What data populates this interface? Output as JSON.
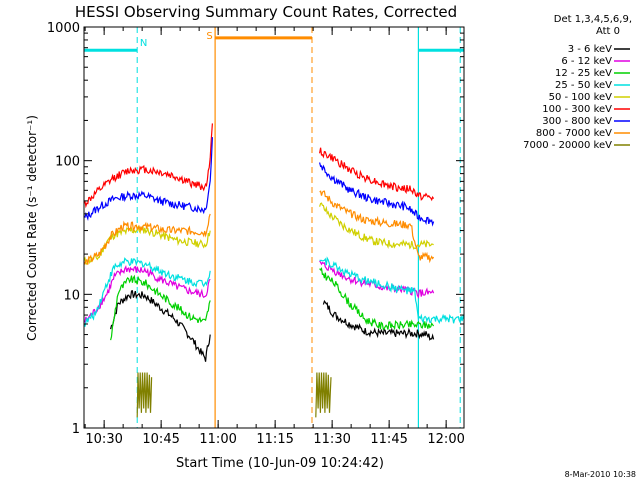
{
  "chart_data": {
    "type": "line",
    "title": "HESSI Observing Summary Count Rates, Corrected",
    "xlabel": "Start Time (10-Jun-09 10:24:42)",
    "ylabel": "Corrected Count Rate (s⁻¹ detector⁻¹)",
    "y_scale": "log",
    "ylim": [
      1,
      1000
    ],
    "xlim_minutes": [
      0,
      100
    ],
    "x_ticks": [
      {
        "label": "10:30",
        "minutes": 5.3
      },
      {
        "label": "10:45",
        "minutes": 20.3
      },
      {
        "label": "11:00",
        "minutes": 35.3
      },
      {
        "label": "11:15",
        "minutes": 50.3
      },
      {
        "label": "11:30",
        "minutes": 65.3
      },
      {
        "label": "11:45",
        "minutes": 80.3
      },
      {
        "label": "12:00",
        "minutes": 95.3
      }
    ],
    "y_ticks": [
      {
        "label": "1",
        "value": 1
      },
      {
        "label": "10",
        "value": 10
      },
      {
        "label": "100",
        "value": 100
      },
      {
        "label": "1000",
        "value": 1000
      }
    ],
    "legend_header": [
      "Det 1,3,4,5,6,9,",
      "Att 0"
    ],
    "legend_position": "right",
    "annotations": [
      {
        "label": "N",
        "color": "#00e0e0"
      },
      {
        "label": "S",
        "color": "#ff8c00"
      }
    ],
    "attenuator_lines": [
      {
        "color": "#00e0e0",
        "level": 670,
        "segments": [
          [
            0,
            14
          ],
          [
            88,
            100
          ]
        ],
        "dashed_x": [
          14,
          99
        ],
        "solid_x": [
          88
        ]
      },
      {
        "color": "#ff8c00",
        "level": 830,
        "segments": [
          [
            34.5,
            60
          ]
        ],
        "dashed_x": [
          60
        ],
        "solid_x": [
          34.5
        ]
      }
    ],
    "series": [
      {
        "name": "3 - 6 keV",
        "color": "#000000",
        "segments": [
          [
            [
              7,
              5.5
            ],
            [
              9,
              8.5
            ],
            [
              12,
              10
            ],
            [
              16,
              9.8
            ],
            [
              20,
              8
            ],
            [
              24,
              6.5
            ],
            [
              28,
              4.8
            ],
            [
              31,
              3.6
            ],
            [
              32,
              3.3
            ],
            [
              33.2,
              5
            ]
          ],
          [
            [
              63,
              8.8
            ],
            [
              66,
              7
            ],
            [
              70,
              6
            ],
            [
              74,
              5.3
            ],
            [
              78,
              5.1
            ],
            [
              84,
              5.1
            ],
            [
              88,
              5.1
            ],
            [
              90,
              5
            ],
            [
              92,
              4.6
            ]
          ]
        ]
      },
      {
        "name": "6 - 12 keV",
        "color": "#e000e0",
        "segments": [
          [
            [
              0,
              6.2
            ],
            [
              3,
              7.5
            ],
            [
              6,
              10
            ],
            [
              8,
              13.5
            ],
            [
              11,
              15.5
            ],
            [
              16,
              15
            ],
            [
              20,
              13
            ],
            [
              24,
              11.5
            ],
            [
              28,
              10.5
            ],
            [
              32,
              9.8
            ],
            [
              33.2,
              13
            ]
          ],
          [
            [
              62,
              17
            ],
            [
              65,
              15.5
            ],
            [
              70,
              13
            ],
            [
              75,
              12
            ],
            [
              80,
              11
            ],
            [
              84,
              10.8
            ],
            [
              87,
              10.5
            ],
            [
              88,
              10.2
            ],
            [
              92,
              10.2
            ]
          ]
        ]
      },
      {
        "name": "12 - 25 keV",
        "color": "#00d000",
        "segments": [
          [
            [
              7,
              4.5
            ],
            [
              9,
              10.5
            ],
            [
              12,
              13
            ],
            [
              16,
              12.2
            ],
            [
              20,
              10
            ],
            [
              24,
              8.2
            ],
            [
              28,
              6.8
            ],
            [
              32,
              6.2
            ],
            [
              33.2,
              9
            ]
          ],
          [
            [
              62,
              15
            ],
            [
              66,
              12
            ],
            [
              70,
              8.5
            ],
            [
              74,
              6.5
            ],
            [
              78,
              5.8
            ],
            [
              84,
              5.9
            ],
            [
              90,
              5.9
            ],
            [
              92,
              5.8
            ]
          ]
        ]
      },
      {
        "name": "25 - 50 keV",
        "color": "#00e0e0",
        "segments": [
          [
            [
              0,
              6
            ],
            [
              3,
              7.2
            ],
            [
              6,
              12
            ],
            [
              8,
              16
            ],
            [
              11,
              17.5
            ],
            [
              16,
              17
            ],
            [
              20,
              15
            ],
            [
              24,
              13.5
            ],
            [
              28,
              12.5
            ],
            [
              32,
              12
            ],
            [
              33.2,
              15
            ]
          ],
          [
            [
              62,
              18.5
            ],
            [
              65,
              17
            ],
            [
              70,
              14
            ],
            [
              75,
              12.5
            ],
            [
              80,
              11.5
            ],
            [
              84,
              10.8
            ],
            [
              87,
              10.5
            ],
            [
              88,
              6.5
            ],
            [
              100,
              6.5
            ]
          ]
        ]
      },
      {
        "name": "50 - 100 keV",
        "color": "#d0d000",
        "segments": [
          [
            [
              0,
              17.5
            ],
            [
              4,
              19
            ],
            [
              6,
              25
            ],
            [
              8,
              28
            ],
            [
              12,
              30
            ],
            [
              16,
              30.5
            ],
            [
              20,
              28
            ],
            [
              24,
              25.5
            ],
            [
              28,
              24.5
            ],
            [
              32,
              23.5
            ],
            [
              33.2,
              30
            ]
          ],
          [
            [
              62,
              48
            ],
            [
              64,
              41
            ],
            [
              68,
              33
            ],
            [
              72,
              28
            ],
            [
              76,
              25
            ],
            [
              80,
              24
            ],
            [
              86,
              23.5
            ],
            [
              88,
              23.5
            ],
            [
              92,
              23.5
            ]
          ]
        ]
      },
      {
        "name": "100 - 300 keV",
        "color": "#ff0000",
        "segments": [
          [
            [
              0,
              47
            ],
            [
              4,
              60
            ],
            [
              8,
              75
            ],
            [
              12,
              85
            ],
            [
              16,
              86
            ],
            [
              20,
              82
            ],
            [
              24,
              76
            ],
            [
              28,
              68
            ],
            [
              32,
              63
            ],
            [
              33.2,
              100
            ],
            [
              33.8,
              190
            ]
          ],
          [
            [
              62,
              118
            ],
            [
              66,
              102
            ],
            [
              70,
              85
            ],
            [
              74,
              75
            ],
            [
              78,
              68
            ],
            [
              82,
              63
            ],
            [
              86,
              61
            ],
            [
              88,
              55
            ],
            [
              92,
              52
            ]
          ]
        ]
      },
      {
        "name": "300 - 800 keV",
        "color": "#0000ff",
        "segments": [
          [
            [
              0,
              37
            ],
            [
              4,
              45
            ],
            [
              8,
              52
            ],
            [
              12,
              55
            ],
            [
              16,
              55
            ],
            [
              20,
              50
            ],
            [
              24,
              47
            ],
            [
              28,
              45
            ],
            [
              32,
              43
            ],
            [
              33.2,
              70
            ],
            [
              33.8,
              150
            ]
          ],
          [
            [
              62,
              95
            ],
            [
              65,
              76
            ],
            [
              70,
              60
            ],
            [
              75,
              52
            ],
            [
              80,
              48
            ],
            [
              85,
              45
            ],
            [
              88,
              38
            ],
            [
              92,
              35
            ]
          ]
        ]
      },
      {
        "name": "800 - 7000 keV",
        "color": "#ff8c00",
        "segments": [
          [
            [
              0,
              17
            ],
            [
              4,
              20
            ],
            [
              7,
              27
            ],
            [
              10,
              32
            ],
            [
              14,
              32.5
            ],
            [
              18,
              31.5
            ],
            [
              22,
              30
            ],
            [
              26,
              30
            ],
            [
              30,
              29.5
            ],
            [
              32,
              29
            ],
            [
              33.2,
              40
            ]
          ],
          [
            [
              62,
              60
            ],
            [
              66,
              47
            ],
            [
              70,
              40
            ],
            [
              74,
              36
            ],
            [
              78,
              34.5
            ],
            [
              82,
              33.5
            ],
            [
              86,
              33
            ],
            [
              88,
              19
            ],
            [
              92,
              19
            ]
          ]
        ]
      },
      {
        "name": "7000 - 20000 keV",
        "color": "#808000",
        "segments": [
          [
            [
              14,
              1.2
            ],
            [
              14.2,
              2.6
            ],
            [
              14.5,
              1.4
            ],
            [
              14.8,
              2.6
            ],
            [
              15.1,
              1.3
            ],
            [
              15.4,
              2.6
            ],
            [
              15.7,
              1.4
            ],
            [
              16,
              2.6
            ],
            [
              16.3,
              1.3
            ],
            [
              16.6,
              2.6
            ],
            [
              16.9,
              1.4
            ],
            [
              17.2,
              2.5
            ],
            [
              17.5,
              1.3
            ],
            [
              17.8,
              2.4
            ]
          ],
          [
            [
              61,
              1.2
            ],
            [
              61.3,
              2.6
            ],
            [
              61.6,
              1.4
            ],
            [
              61.9,
              2.6
            ],
            [
              62.2,
              1.3
            ],
            [
              62.5,
              2.6
            ],
            [
              62.8,
              1.4
            ],
            [
              63.1,
              2.6
            ],
            [
              63.4,
              1.3
            ],
            [
              63.7,
              2.6
            ],
            [
              64,
              1.4
            ],
            [
              64.3,
              2.5
            ],
            [
              64.6,
              1.3
            ],
            [
              65,
              2.4
            ]
          ]
        ]
      }
    ]
  },
  "footer": {
    "date": "8-Mar-2010 10:38"
  }
}
